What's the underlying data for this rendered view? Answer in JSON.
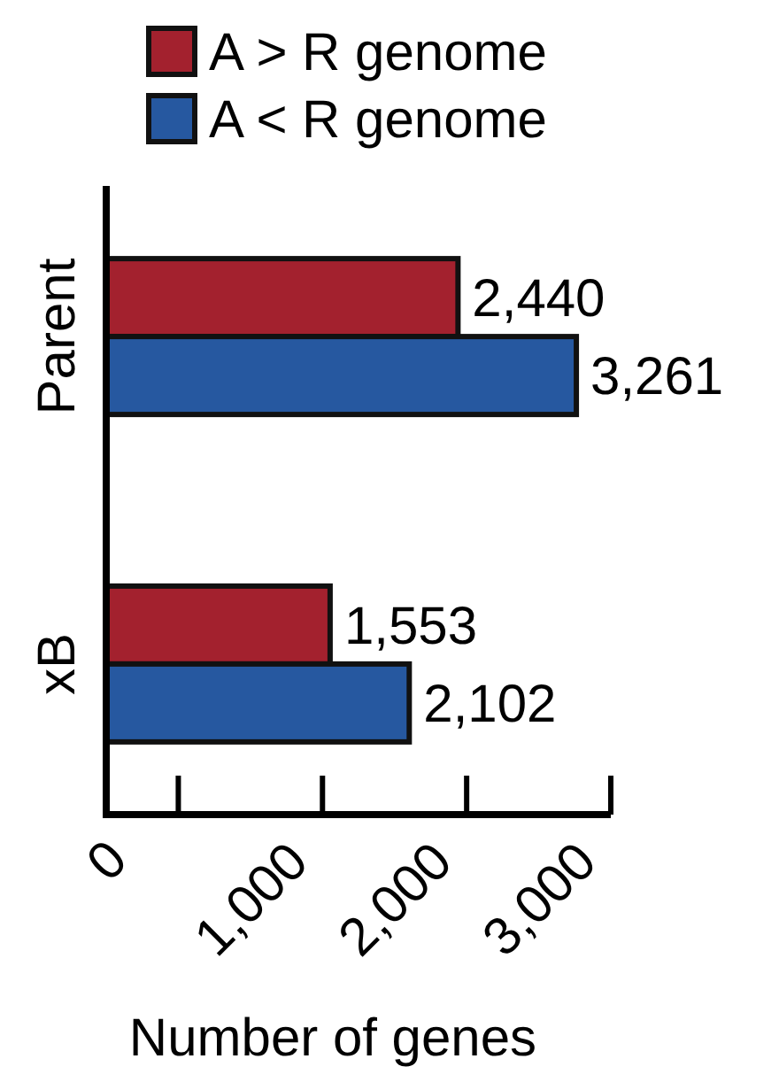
{
  "chart_data": {
    "type": "bar",
    "orientation": "horizontal",
    "xlabel": "Number of genes",
    "categories": [
      "Parent",
      "xB"
    ],
    "series": [
      {
        "name": "A > R genome",
        "color": "#a3212e",
        "values": [
          2440,
          1553
        ],
        "value_labels": [
          "2,440",
          "1,553"
        ]
      },
      {
        "name": "A < R genome",
        "color": "#2658a0",
        "values": [
          3261,
          2102
        ],
        "value_labels": [
          "3,261",
          "2,102"
        ]
      }
    ],
    "xlim": [
      0,
      3500
    ],
    "xticks": [
      0,
      {
        "value": 1000,
        "label": "1,000"
      },
      {
        "value": 2000,
        "label": "2,000"
      },
      {
        "value": 3000,
        "label": "3,000"
      }
    ],
    "legend": "top left",
    "grid": false
  }
}
